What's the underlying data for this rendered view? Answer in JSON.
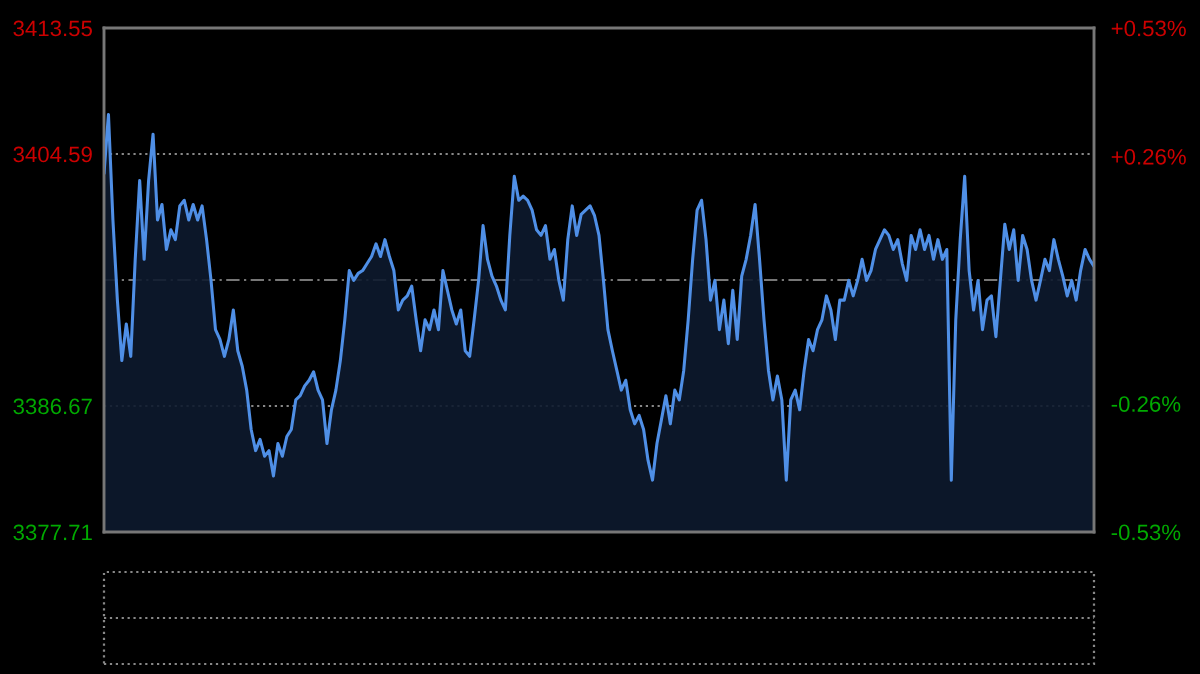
{
  "chart_data": {
    "type": "area",
    "categories": [
      null,
      null,
      null,
      null,
      null,
      null,
      null,
      null,
      null,
      null,
      null,
      null,
      null,
      null,
      null,
      null,
      null,
      null,
      null,
      null,
      null,
      null,
      null,
      null,
      null,
      null,
      null,
      null,
      null,
      null,
      null,
      null,
      null,
      null,
      null,
      null,
      null,
      null,
      null,
      null,
      null,
      null,
      null,
      null,
      null,
      null,
      null,
      null,
      null,
      null,
      null,
      null,
      null,
      null,
      null,
      null,
      null,
      null,
      null,
      null,
      null,
      null,
      null,
      null,
      null,
      null,
      null,
      null,
      null,
      null,
      null,
      null,
      null,
      null,
      null,
      null,
      null,
      null,
      null,
      null,
      null,
      null,
      null,
      null,
      null,
      null,
      null,
      null,
      null,
      null,
      null,
      null,
      null,
      null,
      null,
      null,
      null,
      null,
      null,
      null,
      null,
      null,
      null,
      null,
      null,
      null,
      null,
      null,
      null,
      null,
      null,
      null,
      null,
      null,
      null,
      null,
      null,
      null,
      null,
      null,
      null,
      null,
      null,
      null,
      null,
      null,
      null,
      null,
      null,
      null,
      null,
      null,
      null,
      null,
      null,
      null,
      null,
      null,
      null,
      null,
      null,
      null,
      null,
      null,
      null,
      null,
      null,
      null,
      null,
      null,
      null,
      null,
      null,
      null,
      null,
      null,
      null,
      null,
      null,
      null,
      null,
      null,
      null,
      null,
      null,
      null,
      null,
      null,
      null,
      null,
      null,
      null,
      null,
      null,
      null,
      null,
      null,
      null,
      null,
      null,
      null,
      null,
      null,
      null,
      null,
      null,
      null,
      null,
      null,
      null,
      null,
      null,
      null,
      null,
      null,
      null,
      null,
      null,
      null,
      null,
      null,
      null,
      null,
      null,
      null,
      null,
      null,
      null,
      null,
      null,
      null,
      null,
      null,
      null,
      null,
      null,
      null,
      null,
      null,
      null,
      null,
      null,
      null
    ],
    "series": [
      {
        "color": "#4f8fe6",
        "values": [
          3403.2,
          3407.4,
          3399.9,
          3394.2,
          3389.9,
          3392.5,
          3390.2,
          3397.1,
          3402.7,
          3397.1,
          3402.7,
          3406.0,
          3399.9,
          3401.0,
          3397.8,
          3399.2,
          3398.5,
          3400.9,
          3401.3,
          3399.9,
          3401.0,
          3399.9,
          3400.9,
          3398.5,
          3395.6,
          3392.1,
          3391.4,
          3390.2,
          3391.4,
          3393.5,
          3390.6,
          3389.5,
          3387.8,
          3385.0,
          3383.5,
          3384.3,
          3383.1,
          3383.5,
          3381.7,
          3384.0,
          3383.1,
          3384.5,
          3385.0,
          3387.1,
          3387.4,
          3388.1,
          3388.5,
          3389.1,
          3387.8,
          3387.1,
          3384.0,
          3386.4,
          3387.8,
          3389.9,
          3392.8,
          3396.3,
          3395.6,
          3396.1,
          3396.3,
          3396.8,
          3397.3,
          3398.2,
          3397.3,
          3398.5,
          3397.3,
          3396.3,
          3393.5,
          3394.2,
          3394.5,
          3395.2,
          3392.8,
          3390.6,
          3392.8,
          3392.1,
          3393.5,
          3392.1,
          3396.3,
          3394.9,
          3393.5,
          3392.5,
          3393.5,
          3390.6,
          3390.2,
          3392.8,
          3395.6,
          3399.5,
          3397.1,
          3395.9,
          3395.2,
          3394.2,
          3393.5,
          3398.8,
          3403.0,
          3401.3,
          3401.6,
          3401.3,
          3400.6,
          3399.2,
          3398.8,
          3399.5,
          3397.1,
          3397.8,
          3395.6,
          3394.2,
          3398.5,
          3400.9,
          3398.8,
          3400.3,
          3400.6,
          3400.9,
          3400.2,
          3398.8,
          3395.6,
          3392.1,
          3390.6,
          3389.2,
          3387.8,
          3388.5,
          3386.4,
          3385.4,
          3386.0,
          3385.0,
          3382.8,
          3381.4,
          3384.0,
          3385.7,
          3387.4,
          3385.4,
          3387.8,
          3387.1,
          3389.2,
          3392.8,
          3397.1,
          3400.6,
          3401.3,
          3398.5,
          3394.2,
          3395.6,
          3392.1,
          3394.2,
          3391.1,
          3394.9,
          3391.4,
          3395.9,
          3397.1,
          3398.8,
          3401.0,
          3397.1,
          3392.8,
          3389.2,
          3387.1,
          3388.8,
          3387.1,
          3381.4,
          3387.1,
          3387.8,
          3386.4,
          3389.2,
          3391.4,
          3390.6,
          3392.1,
          3392.8,
          3394.5,
          3393.5,
          3391.4,
          3394.2,
          3394.2,
          3395.6,
          3394.5,
          3395.6,
          3397.1,
          3395.6,
          3396.3,
          3397.8,
          3398.5,
          3399.2,
          3398.8,
          3397.8,
          3398.5,
          3396.8,
          3395.6,
          3398.8,
          3397.8,
          3399.2,
          3397.8,
          3398.8,
          3397.1,
          3398.5,
          3397.1,
          3397.8,
          3381.4,
          3392.8,
          3398.5,
          3403.0,
          3396.3,
          3393.5,
          3395.6,
          3392.1,
          3394.2,
          3394.5,
          3391.6,
          3395.6,
          3399.6,
          3397.8,
          3399.2,
          3395.6,
          3398.8,
          3397.8,
          3395.6,
          3394.2,
          3395.6,
          3397.1,
          3396.3,
          3398.5,
          3397.1,
          3395.9,
          3394.5,
          3395.6,
          3394.2,
          3396.3,
          3397.8,
          3397.1,
          3396.6
        ]
      }
    ],
    "ylim": [
      3377.71,
      3413.55
    ],
    "yticks": [
      3377.71,
      3386.67,
      3404.59,
      3413.55
    ],
    "y2lim": [
      -0.53,
      0.53
    ],
    "y2ticks": [
      {
        "value": -0.53,
        "label": "-0.53%"
      },
      {
        "value": -0.26,
        "label": "-0.26%"
      },
      {
        "value": 0.26,
        "label": "+0.26%"
      },
      {
        "value": 0.53,
        "label": "+0.53%"
      }
    ],
    "ref_lines": [
      {
        "axis": "y",
        "value": 3395.63,
        "color": "#777777",
        "line_style": "dashed"
      }
    ],
    "grid": "y",
    "tick_labels": "y"
  }
}
